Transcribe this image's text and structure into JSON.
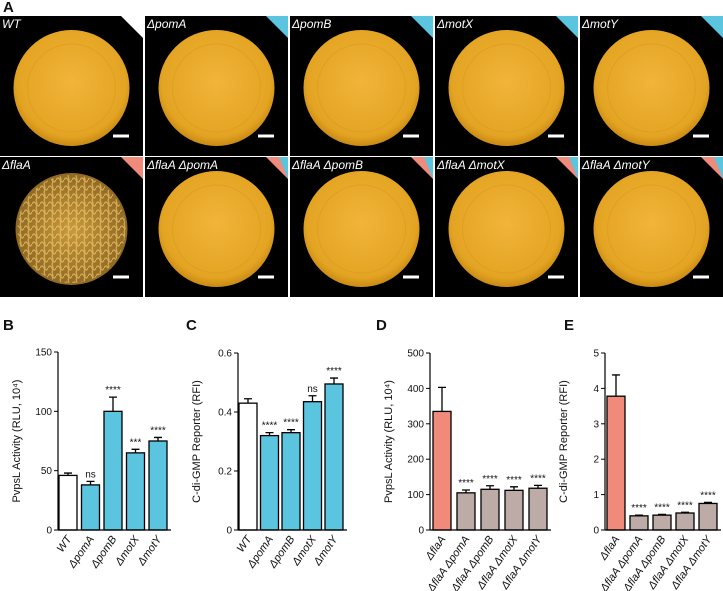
{
  "panel_a": {
    "panel": "A",
    "tiles": [
      {
        "label": "WT",
        "corner": [
          "#ffffff"
        ]
      },
      {
        "label": "ΔpomA",
        "corner": [
          "#5bc4de"
        ]
      },
      {
        "label": "ΔpomB",
        "corner": [
          "#5bc4de"
        ]
      },
      {
        "label": "ΔmotX",
        "corner": [
          "#5bc4de"
        ]
      },
      {
        "label": "ΔmotY",
        "corner": [
          "#5bc4de"
        ]
      },
      {
        "label": "ΔflaA",
        "corner": [
          "#f08a7a"
        ]
      },
      {
        "label": "ΔflaA ΔpomA",
        "corner": [
          "#f08a7a",
          "#5bc4de"
        ]
      },
      {
        "label": "ΔflaA ΔpomB",
        "corner": [
          "#f08a7a",
          "#5bc4de"
        ]
      },
      {
        "label": "ΔflaA ΔmotX",
        "corner": [
          "#f08a7a",
          "#5bc4de"
        ]
      },
      {
        "label": "ΔflaA ΔmotY",
        "corner": [
          "#f08a7a",
          "#5bc4de"
        ]
      }
    ]
  },
  "chart_data": [
    {
      "type": "bar",
      "panel": "B",
      "ylabel": "PvpsL Activity (RLU, 10⁴)",
      "categories": [
        "WT",
        "ΔpomA",
        "ΔpomB",
        "ΔmotX",
        "ΔmotY"
      ],
      "values": [
        46,
        38,
        100,
        65,
        75
      ],
      "errors": [
        2,
        3,
        12,
        3,
        3
      ],
      "colors": [
        "#ffffff",
        "#5bc4de",
        "#5bc4de",
        "#5bc4de",
        "#5bc4de"
      ],
      "annotations": [
        null,
        "ns",
        "****",
        "***",
        "****"
      ],
      "ylim": [
        0,
        150
      ],
      "yticks": [
        0,
        50,
        100,
        150
      ]
    },
    {
      "type": "bar",
      "panel": "C",
      "ylabel": "C-di-GMP Reporter (RFI)",
      "categories": [
        "WT",
        "ΔpomA",
        "ΔpomB",
        "ΔmotX",
        "ΔmotY"
      ],
      "values": [
        0.43,
        0.32,
        0.33,
        0.435,
        0.495
      ],
      "errors": [
        0.015,
        0.01,
        0.01,
        0.02,
        0.02
      ],
      "colors": [
        "#ffffff",
        "#5bc4de",
        "#5bc4de",
        "#5bc4de",
        "#5bc4de"
      ],
      "annotations": [
        null,
        "****",
        "****",
        "ns",
        "****"
      ],
      "ylim": [
        0,
        0.6
      ],
      "yticks": [
        0,
        0.2,
        0.4,
        0.6
      ]
    },
    {
      "type": "bar",
      "panel": "D",
      "ylabel": "PvpsL Activity (RLU, 10⁴)",
      "categories": [
        "ΔflaA",
        "ΔflaA ΔpomA",
        "ΔflaA ΔpomB",
        "ΔflaA ΔmotX",
        "ΔflaA ΔmotY"
      ],
      "values": [
        335,
        105,
        115,
        112,
        118
      ],
      "errors": [
        68,
        8,
        10,
        10,
        8
      ],
      "colors": [
        "#f08a7a",
        "#bcaba7",
        "#bcaba7",
        "#bcaba7",
        "#bcaba7"
      ],
      "annotations": [
        null,
        "****",
        "****",
        "****",
        "****"
      ],
      "ylim": [
        0,
        500
      ],
      "yticks": [
        0,
        100,
        200,
        300,
        400,
        500
      ]
    },
    {
      "type": "bar",
      "panel": "E",
      "ylabel": "C-di-GMP Reporter (RFI)",
      "categories": [
        "ΔflaA",
        "ΔflaA ΔpomA",
        "ΔflaA ΔpomB",
        "ΔflaA ΔmotX",
        "ΔflaA ΔmotY"
      ],
      "values": [
        3.78,
        0.4,
        0.42,
        0.48,
        0.75
      ],
      "errors": [
        0.6,
        0.02,
        0.02,
        0.02,
        0.03
      ],
      "colors": [
        "#f08a7a",
        "#bcaba7",
        "#bcaba7",
        "#bcaba7",
        "#bcaba7"
      ],
      "annotations": [
        null,
        "****",
        "****",
        "****",
        "****"
      ],
      "ylim": [
        0,
        5
      ],
      "yticks": [
        0,
        1,
        2,
        3,
        4,
        5
      ]
    }
  ]
}
